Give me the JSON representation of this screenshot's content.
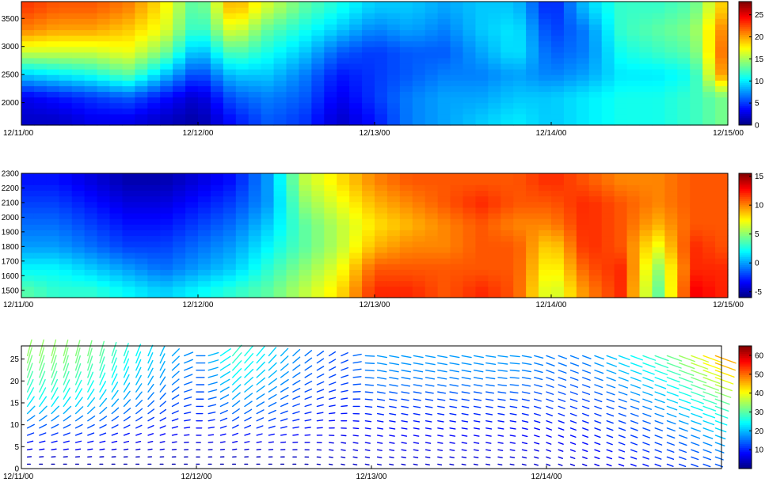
{
  "chart_data": [
    {
      "type": "heatmap",
      "title": "",
      "xlabel": "",
      "ylabel": "",
      "x_ticks": [
        "12/11/00",
        "12/12/00",
        "12/13/00",
        "12/14/00",
        "12/15/00"
      ],
      "x_range": [
        "12/11/00",
        "12/15/00"
      ],
      "y_ticks": [
        "2000",
        "2500",
        "3000",
        "3500"
      ],
      "ylim": [
        1600,
        3800
      ],
      "colorbar": {
        "ticks": [
          "0",
          "5",
          "10",
          "15",
          "20",
          "25"
        ],
        "range": [
          0,
          28
        ],
        "colormap": "jet"
      },
      "time_fraction": [
        0,
        0.05,
        0.1,
        0.15,
        0.2,
        0.25,
        0.3,
        0.35,
        0.4,
        0.45,
        0.5,
        0.55,
        0.6,
        0.65,
        0.7,
        0.75,
        0.8,
        0.85,
        0.9,
        0.95,
        1.0
      ],
      "levels": [
        1700,
        2100,
        2500,
        2900,
        3300,
        3700
      ],
      "values": [
        [
          2,
          3,
          9,
          16,
          21,
          23
        ],
        [
          2,
          4,
          10,
          16,
          20,
          22
        ],
        [
          3,
          5,
          11,
          16,
          20,
          22
        ],
        [
          3,
          6,
          13,
          17,
          19,
          21
        ],
        [
          2,
          4,
          9,
          14,
          17,
          18
        ],
        [
          1,
          2,
          5,
          8,
          11,
          12
        ],
        [
          4,
          6,
          9,
          13,
          17,
          20
        ],
        [
          6,
          7,
          9,
          11,
          13,
          16
        ],
        [
          5,
          6,
          7,
          9,
          11,
          13
        ],
        [
          2,
          3,
          4,
          6,
          9,
          11
        ],
        [
          4,
          5,
          5,
          5,
          7,
          9
        ],
        [
          7,
          7,
          6,
          6,
          8,
          9
        ],
        [
          8,
          8,
          7,
          6,
          7,
          8
        ],
        [
          9,
          8,
          7,
          8,
          9,
          9
        ],
        [
          10,
          9,
          8,
          10,
          10,
          9
        ],
        [
          9,
          9,
          7,
          6,
          5,
          4
        ],
        [
          10,
          10,
          8,
          7,
          7,
          9
        ],
        [
          11,
          11,
          10,
          11,
          12,
          12
        ],
        [
          11,
          11,
          10,
          12,
          13,
          12
        ],
        [
          12,
          12,
          11,
          13,
          14,
          13
        ],
        [
          14,
          14,
          22,
          23,
          22,
          20
        ]
      ]
    },
    {
      "type": "heatmap",
      "title": "",
      "xlabel": "",
      "ylabel": "",
      "x_ticks": [
        "12/11/00",
        "12/12/00",
        "12/13/00",
        "12/14/00",
        "12/15/00"
      ],
      "x_range": [
        "12/11/00",
        "12/15/00"
      ],
      "y_ticks": [
        "1500",
        "1600",
        "1700",
        "1800",
        "1900",
        "2000",
        "2100",
        "2200",
        "2300"
      ],
      "ylim": [
        1450,
        2300
      ],
      "colorbar": {
        "ticks": [
          "-5",
          "0",
          "5",
          "10",
          "15"
        ],
        "range": [
          -6,
          15.5
        ],
        "colormap": "jet"
      },
      "time_fraction": [
        0,
        0.05,
        0.1,
        0.15,
        0.2,
        0.25,
        0.3,
        0.35,
        0.4,
        0.45,
        0.5,
        0.55,
        0.6,
        0.65,
        0.7,
        0.75,
        0.8,
        0.85,
        0.9,
        0.95,
        1.0
      ],
      "levels": [
        1500,
        1650,
        1800,
        1950,
        2100,
        2250
      ],
      "values": [
        [
          4,
          2,
          0,
          -1,
          -2,
          -3
        ],
        [
          3,
          2,
          0,
          -1,
          -2,
          -3
        ],
        [
          3,
          1,
          -1,
          -2,
          -3,
          -4
        ],
        [
          2,
          0,
          -2,
          -3,
          -4,
          -5
        ],
        [
          1,
          -1,
          -2,
          -3,
          -4,
          -5
        ],
        [
          2,
          0,
          -1,
          -2,
          -3,
          -4
        ],
        [
          3,
          1,
          0,
          -1,
          -2,
          -3
        ],
        [
          4,
          3,
          2,
          1,
          0,
          0
        ],
        [
          6,
          5,
          4,
          4,
          5,
          6
        ],
        [
          8,
          7,
          6,
          6,
          7,
          8
        ],
        [
          12,
          11,
          9,
          8,
          9,
          10
        ],
        [
          12,
          11,
          10,
          9,
          10,
          11
        ],
        [
          11,
          11,
          10,
          10,
          11,
          11
        ],
        [
          12,
          11,
          11,
          11,
          12,
          11
        ],
        [
          11,
          11,
          11,
          10,
          11,
          11
        ],
        [
          6,
          7,
          8,
          10,
          11,
          12
        ],
        [
          10,
          11,
          12,
          12,
          12,
          11
        ],
        [
          12,
          12,
          11,
          11,
          11,
          10
        ],
        [
          4,
          5,
          7,
          9,
          10,
          10
        ],
        [
          13,
          12,
          12,
          11,
          11,
          11
        ],
        [
          12,
          12,
          11,
          11,
          11,
          11
        ]
      ]
    },
    {
      "type": "quiver",
      "title": "",
      "xlabel": "",
      "ylabel": "",
      "x_ticks": [
        "12/11/00",
        "12/12/00",
        "12/13/00",
        "12/14/00"
      ],
      "x_range": [
        "12/11/00",
        "12/15/00"
      ],
      "y_ticks": [
        "0",
        "5",
        "10",
        "15",
        "20",
        "25"
      ],
      "ylim": [
        0,
        28
      ],
      "colorbar": {
        "ticks": [
          "10",
          "20",
          "30",
          "40",
          "50",
          "60"
        ],
        "range": [
          0,
          65
        ],
        "colormap": "jet"
      },
      "time_fraction": [
        0,
        0.05,
        0.1,
        0.15,
        0.2,
        0.25,
        0.3,
        0.35,
        0.4,
        0.45,
        0.5,
        0.55,
        0.6,
        0.65,
        0.7,
        0.75,
        0.8,
        0.85,
        0.9,
        0.95,
        1.0
      ],
      "levels": [
        1,
        5,
        10,
        15,
        20,
        25
      ],
      "speed": [
        [
          3,
          8,
          15,
          25,
          30,
          34
        ],
        [
          3,
          8,
          15,
          25,
          30,
          34
        ],
        [
          3,
          8,
          14,
          22,
          28,
          32
        ],
        [
          3,
          6,
          12,
          18,
          22,
          26
        ],
        [
          3,
          6,
          10,
          14,
          18,
          20
        ],
        [
          3,
          5,
          9,
          12,
          14,
          16
        ],
        [
          3,
          6,
          12,
          18,
          24,
          28
        ],
        [
          3,
          6,
          12,
          16,
          20,
          22
        ],
        [
          3,
          6,
          10,
          12,
          14,
          16
        ],
        [
          4,
          6,
          8,
          10,
          12,
          12
        ],
        [
          5,
          7,
          9,
          12,
          16,
          18
        ],
        [
          5,
          7,
          9,
          12,
          16,
          18
        ],
        [
          5,
          7,
          9,
          12,
          16,
          18
        ],
        [
          5,
          7,
          9,
          12,
          16,
          18
        ],
        [
          5,
          7,
          9,
          12,
          16,
          18
        ],
        [
          5,
          7,
          9,
          12,
          14,
          16
        ],
        [
          6,
          8,
          10,
          12,
          14,
          16
        ],
        [
          8,
          10,
          12,
          14,
          18,
          22
        ],
        [
          10,
          12,
          14,
          18,
          22,
          28
        ],
        [
          12,
          14,
          18,
          24,
          30,
          36
        ],
        [
          14,
          18,
          24,
          30,
          40,
          48
        ]
      ],
      "direction_deg": [
        [
          90,
          80,
          60,
          30,
          20,
          15
        ],
        [
          90,
          80,
          60,
          30,
          20,
          15
        ],
        [
          90,
          80,
          60,
          35,
          20,
          15
        ],
        [
          90,
          80,
          60,
          40,
          25,
          20
        ],
        [
          90,
          80,
          65,
          45,
          30,
          25
        ],
        [
          90,
          90,
          90,
          90,
          90,
          90
        ],
        [
          90,
          80,
          60,
          50,
          45,
          40
        ],
        [
          90,
          85,
          70,
          60,
          50,
          40
        ],
        [
          90,
          90,
          80,
          70,
          60,
          50
        ],
        [
          100,
          100,
          90,
          80,
          70,
          60
        ],
        [
          100,
          100,
          100,
          100,
          100,
          100
        ],
        [
          100,
          100,
          100,
          100,
          100,
          100
        ],
        [
          100,
          100,
          100,
          100,
          100,
          100
        ],
        [
          100,
          100,
          100,
          100,
          100,
          100
        ],
        [
          100,
          100,
          100,
          100,
          95,
          95
        ],
        [
          110,
          110,
          110,
          110,
          110,
          110
        ],
        [
          110,
          110,
          110,
          110,
          110,
          110
        ],
        [
          110,
          110,
          110,
          110,
          110,
          110
        ],
        [
          110,
          110,
          110,
          110,
          110,
          110
        ],
        [
          110,
          110,
          110,
          110,
          110,
          110
        ],
        [
          110,
          110,
          110,
          110,
          110,
          110
        ]
      ]
    }
  ]
}
